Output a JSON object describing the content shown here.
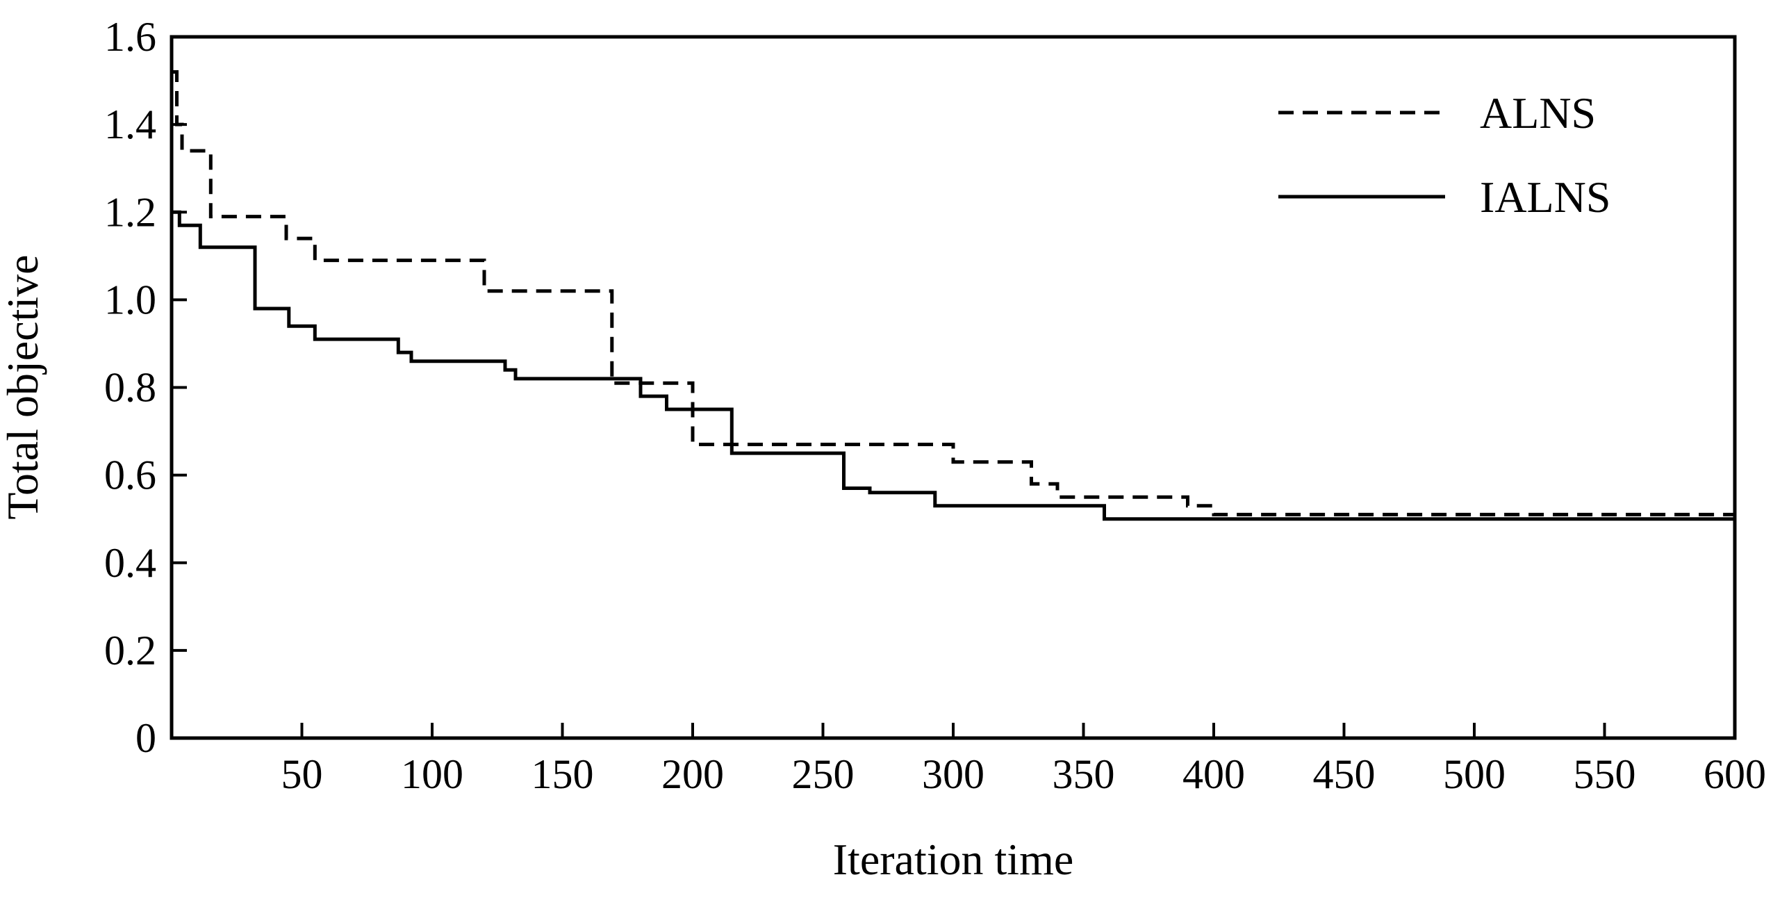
{
  "chart_data": {
    "type": "line",
    "title": "",
    "xlabel": "Iteration time",
    "ylabel": "Total objective",
    "xlim": [
      0,
      600
    ],
    "ylim": [
      0,
      1.6
    ],
    "xticks": [
      "50",
      "100",
      "150",
      "200",
      "250",
      "300",
      "350",
      "400",
      "450",
      "500",
      "550",
      "600"
    ],
    "yticks": [
      "0",
      "0.2",
      "0.4",
      "0.6",
      "0.8",
      "1.0",
      "1.2",
      "1.4",
      "1.6"
    ],
    "grid": false,
    "legend_position": "top-right",
    "series": [
      {
        "name": "ALNS",
        "style": "dashed",
        "color": "#000000",
        "x": [
          0,
          2,
          4,
          8,
          15,
          44,
          55,
          120,
          169,
          197,
          200,
          300,
          330,
          340,
          390,
          400,
          600
        ],
        "y": [
          1.52,
          1.4,
          1.34,
          1.34,
          1.19,
          1.14,
          1.09,
          1.02,
          0.81,
          0.81,
          0.67,
          0.63,
          0.58,
          0.55,
          0.53,
          0.51,
          0.51
        ]
      },
      {
        "name": "IALNS",
        "style": "solid",
        "color": "#000000",
        "x": [
          0,
          3,
          11,
          32,
          45,
          55,
          87,
          92,
          128,
          132,
          180,
          190,
          215,
          258,
          268,
          293,
          358,
          600
        ],
        "y": [
          1.2,
          1.17,
          1.12,
          0.98,
          0.94,
          0.91,
          0.88,
          0.86,
          0.84,
          0.82,
          0.78,
          0.75,
          0.65,
          0.57,
          0.56,
          0.53,
          0.5,
          0.5
        ]
      }
    ]
  }
}
